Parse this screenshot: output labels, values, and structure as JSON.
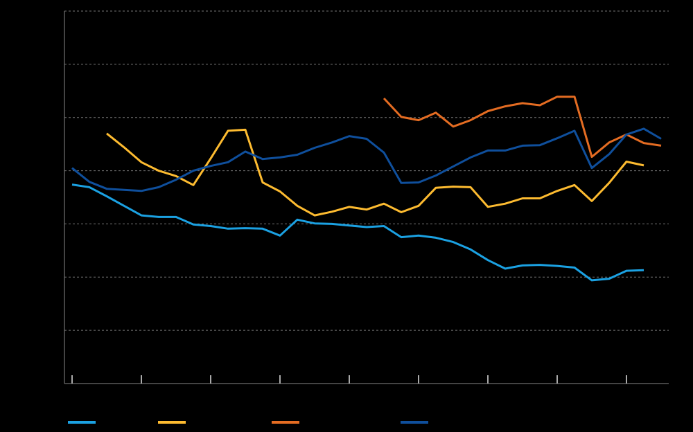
{
  "chart_data": {
    "type": "line",
    "x": [
      0,
      1,
      2,
      3,
      4,
      5,
      6,
      7,
      8,
      9,
      10,
      11,
      12,
      13,
      14,
      15,
      16,
      17,
      18,
      19,
      20,
      21,
      22,
      23,
      24,
      25,
      26,
      27,
      28,
      29,
      30,
      31,
      32,
      33,
      34
    ],
    "xlim": [
      -0.44,
      34.44
    ],
    "xticks": [
      0,
      4,
      8,
      12,
      16,
      20,
      24,
      28,
      32
    ],
    "ylim": [
      0,
      7
    ],
    "yticks": [
      0,
      1,
      2,
      3,
      4,
      5,
      6,
      7
    ],
    "grid": true,
    "series": [
      {
        "color": "#1ba1e2",
        "values": [
          3.74,
          3.69,
          3.52,
          3.34,
          3.16,
          3.13,
          3.13,
          2.99,
          2.96,
          2.91,
          2.92,
          2.91,
          2.78,
          3.08,
          3.01,
          3.0,
          2.97,
          2.94,
          2.96,
          2.75,
          2.78,
          2.74,
          2.66,
          2.52,
          2.32,
          2.16,
          2.22,
          2.23,
          2.21,
          2.18,
          1.94,
          1.97,
          2.12,
          2.13,
          null
        ]
      },
      {
        "color": "#fdbb30",
        "values": [
          null,
          null,
          4.7,
          4.44,
          4.16,
          4.0,
          3.9,
          3.73,
          4.23,
          4.75,
          4.77,
          3.78,
          3.61,
          3.34,
          3.16,
          3.23,
          3.32,
          3.27,
          3.38,
          3.22,
          3.34,
          3.68,
          3.7,
          3.69,
          3.32,
          3.38,
          3.48,
          3.48,
          3.62,
          3.73,
          3.43,
          3.77,
          4.17,
          4.1,
          null
        ]
      },
      {
        "color": "#e46c22",
        "values": [
          null,
          null,
          null,
          null,
          null,
          null,
          null,
          null,
          null,
          null,
          null,
          null,
          null,
          null,
          null,
          null,
          null,
          null,
          5.36,
          5.01,
          4.95,
          5.09,
          4.83,
          4.95,
          5.12,
          5.21,
          5.27,
          5.23,
          5.39,
          5.39,
          4.26,
          4.53,
          4.68,
          4.52,
          4.47
        ]
      },
      {
        "color": "#0f4f9c",
        "values": [
          4.05,
          3.79,
          3.66,
          3.64,
          3.62,
          3.69,
          3.83,
          4.0,
          4.09,
          4.16,
          4.36,
          4.22,
          4.25,
          4.3,
          4.43,
          4.53,
          4.65,
          4.6,
          4.34,
          3.77,
          3.78,
          3.91,
          4.08,
          4.25,
          4.38,
          4.38,
          4.47,
          4.48,
          4.61,
          4.75,
          4.05,
          4.31,
          4.68,
          4.79,
          4.6
        ]
      }
    ]
  }
}
